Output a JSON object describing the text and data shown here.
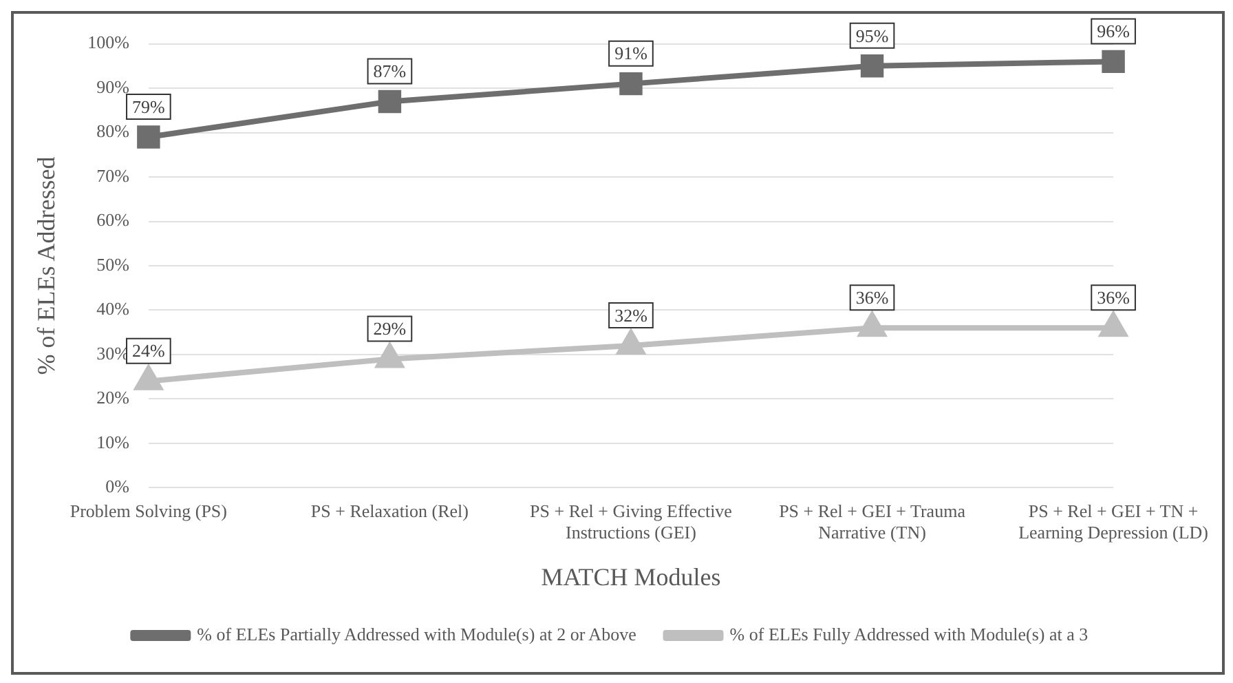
{
  "chart_data": {
    "type": "line",
    "xlabel": "MATCH Modules",
    "ylabel": "% of ELEs Addressed",
    "categories": [
      "Problem Solving (PS)",
      "PS + Relaxation (Rel)",
      "PS + Rel + Giving Effective Instructions (GEI)",
      "PS + Rel + GEI + Trauma Narrative (TN)",
      "PS + Rel + GEI + TN + Learning Depression (LD)"
    ],
    "series": [
      {
        "name": "% of ELEs Partially Addressed with Module(s) at 2 or Above",
        "color": "#6e6e6e",
        "values": [
          79,
          87,
          91,
          95,
          96
        ],
        "value_labels": [
          "79%",
          "87%",
          "91%",
          "95%",
          "96%"
        ],
        "marker": "square"
      },
      {
        "name": "% of ELEs Fully Addressed with Module(s) at a 3",
        "color": "#bfbfbf",
        "values": [
          24,
          29,
          32,
          36,
          36
        ],
        "value_labels": [
          "24%",
          "29%",
          "32%",
          "36%",
          "36%"
        ],
        "marker": "triangle"
      }
    ],
    "ylim": [
      0,
      100
    ],
    "yticks": [
      {
        "value": 0,
        "label": "0%"
      },
      {
        "value": 10,
        "label": "10%"
      },
      {
        "value": 20,
        "label": "20%"
      },
      {
        "value": 30,
        "label": "30%"
      },
      {
        "value": 40,
        "label": "40%"
      },
      {
        "value": 50,
        "label": "50%"
      },
      {
        "value": 60,
        "label": "60%"
      },
      {
        "value": 70,
        "label": "70%"
      },
      {
        "value": 80,
        "label": "80%"
      },
      {
        "value": 90,
        "label": "90%"
      },
      {
        "value": 100,
        "label": "100%"
      }
    ],
    "grid": "y",
    "legend": "bottom",
    "line_style": "solid"
  }
}
